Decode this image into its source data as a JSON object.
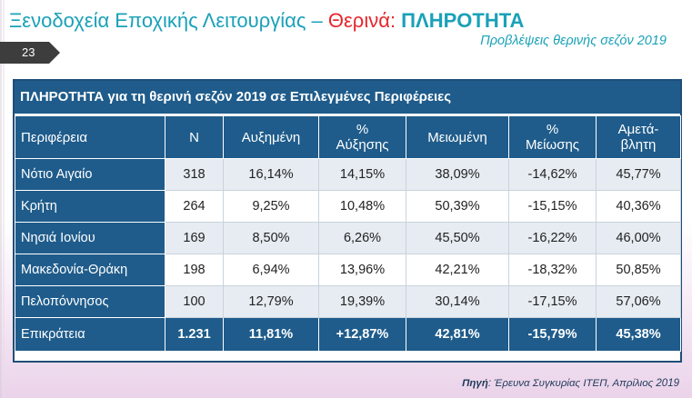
{
  "slide": {
    "title_part1": "Ξενοδοχεία Εποχικής Λειτουργίας – ",
    "title_part2": "Θερινά",
    "title_part3": ": ",
    "title_part4": "ΠΛΗΡΟΤΗΤΑ",
    "subtitle": "Προβλέψεις θερινής σεζόν 2019",
    "page_number": "23",
    "source_label": "Πηγή",
    "source_text": ": Έρευνα Συγκυρίας ΙΤΕΠ, Απρίλιος 2019"
  },
  "table": {
    "caption": "ΠΛΗΡΟΤΗΤΑ για τη θερινή σεζόν 2019 σε Επιλεγμένες Περιφέρειες",
    "headers": [
      {
        "line1": "Περιφέρεια",
        "line2": ""
      },
      {
        "line1": "Ν",
        "line2": ""
      },
      {
        "line1": "Αυξημένη",
        "line2": ""
      },
      {
        "line1": "%",
        "line2": "Αύξησης"
      },
      {
        "line1": "Μειωμένη",
        "line2": ""
      },
      {
        "line1": "%",
        "line2": "Μείωσης"
      },
      {
        "line1": "Αμετά-",
        "line2": "βλητη"
      }
    ],
    "rows": [
      {
        "region": "Νότιο Αιγαίο",
        "n": "318",
        "increased": "16,14%",
        "pct_increase": "14,15%",
        "decreased": "38,09%",
        "pct_decrease": "-14,62%",
        "unchanged": "45,77%"
      },
      {
        "region": "Κρήτη",
        "n": "264",
        "increased": "9,25%",
        "pct_increase": "10,48%",
        "decreased": "50,39%",
        "pct_decrease": "-15,15%",
        "unchanged": "40,36%"
      },
      {
        "region": "Νησιά Ιονίου",
        "n": "169",
        "increased": "8,50%",
        "pct_increase": "6,26%",
        "decreased": "45,50%",
        "pct_decrease": "-16,22%",
        "unchanged": "46,00%"
      },
      {
        "region": "Μακεδονία-Θράκη",
        "n": "198",
        "increased": "6,94%",
        "pct_increase": "13,96%",
        "decreased": "42,21%",
        "pct_decrease": "-18,32%",
        "unchanged": "50,85%"
      },
      {
        "region": "Πελοπόννησος",
        "n": "100",
        "increased": "12,79%",
        "pct_increase": "19,39%",
        "decreased": "30,14%",
        "pct_decrease": "-17,15%",
        "unchanged": "57,06%"
      }
    ],
    "total": {
      "region": "Επικράτεια",
      "n": "1.231",
      "increased": "11,81%",
      "pct_increase": "+12,87%",
      "decreased": "42,81%",
      "pct_decrease": "-15,79%",
      "unchanged": "45,38%"
    }
  },
  "colors": {
    "title_teal": "#1aa1b8",
    "title_red": "#e8262a",
    "table_blue": "#1f5c8b",
    "row_shade": "#e6ecf2",
    "badge_gray": "#3d3d3d"
  }
}
